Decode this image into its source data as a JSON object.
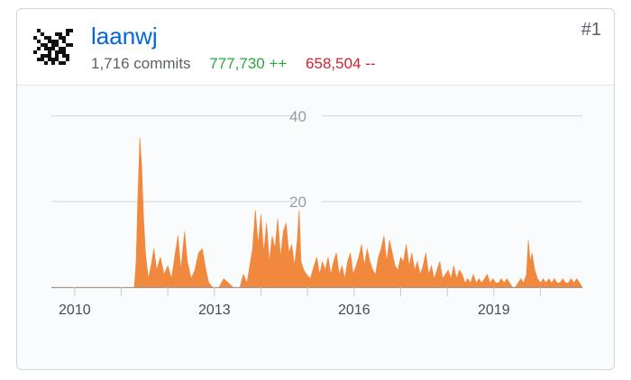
{
  "contributor": {
    "username": "laanwj",
    "commits": "1,716 commits",
    "additions": "777,730 ++",
    "deletions": "658,504 --",
    "rank": "#1"
  },
  "colors": {
    "link": "#0366d6",
    "additions": "#28a745",
    "deletions": "#cb2431",
    "area": "#f0883e"
  },
  "chart_data": {
    "type": "area",
    "title": "",
    "xlabel": "",
    "ylabel": "",
    "x_ticks": [
      "2010",
      "2013",
      "2016",
      "2019"
    ],
    "y_ticks": [
      20,
      40
    ],
    "ylim": [
      0,
      45
    ],
    "xlim": [
      2009.5,
      2020.9
    ],
    "grid": true,
    "series": [
      {
        "points": [
          [
            2009.5,
            0
          ],
          [
            2011.28,
            0
          ],
          [
            2011.32,
            6
          ],
          [
            2011.36,
            22
          ],
          [
            2011.4,
            35
          ],
          [
            2011.44,
            28
          ],
          [
            2011.48,
            16
          ],
          [
            2011.52,
            8
          ],
          [
            2011.58,
            2
          ],
          [
            2011.64,
            5
          ],
          [
            2011.7,
            9
          ],
          [
            2011.76,
            4
          ],
          [
            2011.84,
            7
          ],
          [
            2011.92,
            3
          ],
          [
            2012.0,
            5
          ],
          [
            2012.08,
            2
          ],
          [
            2012.16,
            8
          ],
          [
            2012.22,
            12
          ],
          [
            2012.28,
            4
          ],
          [
            2012.36,
            13
          ],
          [
            2012.42,
            6
          ],
          [
            2012.5,
            2
          ],
          [
            2012.58,
            4
          ],
          [
            2012.66,
            8
          ],
          [
            2012.74,
            9
          ],
          [
            2012.82,
            4
          ],
          [
            2012.88,
            1
          ],
          [
            2012.96,
            0
          ],
          [
            2013.1,
            0
          ],
          [
            2013.2,
            2
          ],
          [
            2013.3,
            1
          ],
          [
            2013.4,
            0
          ],
          [
            2013.55,
            0
          ],
          [
            2013.62,
            3
          ],
          [
            2013.7,
            1
          ],
          [
            2013.76,
            5
          ],
          [
            2013.82,
            9
          ],
          [
            2013.88,
            18
          ],
          [
            2013.94,
            10
          ],
          [
            2014.0,
            17
          ],
          [
            2014.06,
            8
          ],
          [
            2014.12,
            15
          ],
          [
            2014.18,
            6
          ],
          [
            2014.24,
            12
          ],
          [
            2014.3,
            9
          ],
          [
            2014.36,
            16
          ],
          [
            2014.42,
            7
          ],
          [
            2014.48,
            13
          ],
          [
            2014.54,
            15
          ],
          [
            2014.6,
            8
          ],
          [
            2014.66,
            10
          ],
          [
            2014.72,
            5
          ],
          [
            2014.78,
            11
          ],
          [
            2014.82,
            18
          ],
          [
            2014.86,
            6
          ],
          [
            2014.92,
            4
          ],
          [
            2014.98,
            3
          ],
          [
            2015.06,
            2
          ],
          [
            2015.14,
            5
          ],
          [
            2015.2,
            7
          ],
          [
            2015.26,
            3
          ],
          [
            2015.32,
            6
          ],
          [
            2015.38,
            4
          ],
          [
            2015.44,
            7
          ],
          [
            2015.5,
            3
          ],
          [
            2015.56,
            6
          ],
          [
            2015.62,
            8
          ],
          [
            2015.68,
            3
          ],
          [
            2015.74,
            5
          ],
          [
            2015.8,
            2
          ],
          [
            2015.86,
            6
          ],
          [
            2015.92,
            8
          ],
          [
            2015.98,
            3
          ],
          [
            2016.04,
            5
          ],
          [
            2016.1,
            7
          ],
          [
            2016.16,
            10
          ],
          [
            2016.22,
            5
          ],
          [
            2016.28,
            9
          ],
          [
            2016.34,
            6
          ],
          [
            2016.4,
            4
          ],
          [
            2016.46,
            3
          ],
          [
            2016.52,
            7
          ],
          [
            2016.58,
            9
          ],
          [
            2016.64,
            12
          ],
          [
            2016.7,
            6
          ],
          [
            2016.76,
            11
          ],
          [
            2016.82,
            8
          ],
          [
            2016.88,
            5
          ],
          [
            2016.94,
            4
          ],
          [
            2017.0,
            7
          ],
          [
            2017.06,
            6
          ],
          [
            2017.12,
            10
          ],
          [
            2017.18,
            5
          ],
          [
            2017.24,
            8
          ],
          [
            2017.3,
            4
          ],
          [
            2017.36,
            6
          ],
          [
            2017.42,
            3
          ],
          [
            2017.48,
            5
          ],
          [
            2017.54,
            8
          ],
          [
            2017.6,
            3
          ],
          [
            2017.66,
            5
          ],
          [
            2017.72,
            2
          ],
          [
            2017.78,
            4
          ],
          [
            2017.84,
            6
          ],
          [
            2017.9,
            2
          ],
          [
            2017.96,
            3
          ],
          [
            2018.02,
            4
          ],
          [
            2018.08,
            2
          ],
          [
            2018.14,
            5
          ],
          [
            2018.2,
            2
          ],
          [
            2018.26,
            4
          ],
          [
            2018.32,
            3
          ],
          [
            2018.38,
            1
          ],
          [
            2018.44,
            2
          ],
          [
            2018.5,
            1
          ],
          [
            2018.56,
            3
          ],
          [
            2018.62,
            1
          ],
          [
            2018.68,
            2
          ],
          [
            2018.74,
            1
          ],
          [
            2018.8,
            2
          ],
          [
            2018.86,
            3
          ],
          [
            2018.92,
            1
          ],
          [
            2018.98,
            2
          ],
          [
            2019.04,
            1
          ],
          [
            2019.1,
            1
          ],
          [
            2019.16,
            2
          ],
          [
            2019.22,
            1
          ],
          [
            2019.28,
            2
          ],
          [
            2019.34,
            1
          ],
          [
            2019.4,
            0
          ],
          [
            2019.46,
            0
          ],
          [
            2019.52,
            1
          ],
          [
            2019.58,
            2
          ],
          [
            2019.64,
            1
          ],
          [
            2019.7,
            3
          ],
          [
            2019.74,
            11
          ],
          [
            2019.78,
            6
          ],
          [
            2019.82,
            8
          ],
          [
            2019.88,
            4
          ],
          [
            2019.94,
            2
          ],
          [
            2020.0,
            1
          ],
          [
            2020.06,
            2
          ],
          [
            2020.12,
            1
          ],
          [
            2020.18,
            2
          ],
          [
            2020.24,
            1
          ],
          [
            2020.3,
            2
          ],
          [
            2020.36,
            1
          ],
          [
            2020.42,
            1
          ],
          [
            2020.48,
            2
          ],
          [
            2020.54,
            1
          ],
          [
            2020.6,
            1
          ],
          [
            2020.66,
            2
          ],
          [
            2020.72,
            1
          ],
          [
            2020.78,
            2
          ],
          [
            2020.84,
            1
          ],
          [
            2020.9,
            0
          ]
        ]
      }
    ]
  }
}
